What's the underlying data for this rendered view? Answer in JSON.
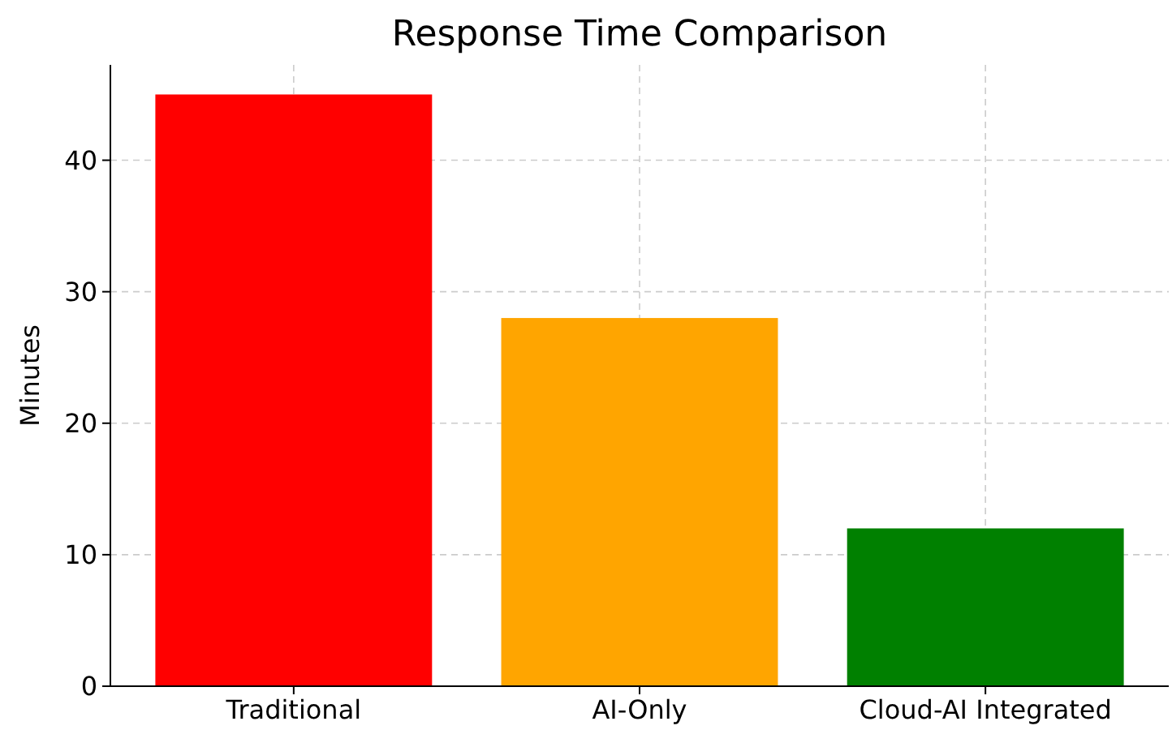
{
  "chart_data": {
    "type": "bar",
    "title": "Response Time Comparison",
    "ylabel": "Minutes",
    "categories": [
      "Traditional",
      "AI-Only",
      "Cloud-AI Integrated"
    ],
    "values": [
      45,
      28,
      12
    ],
    "colors": [
      "#ff0000",
      "#ffa500",
      "#008000"
    ],
    "ylim": [
      0,
      47.25
    ],
    "yticks": [
      0,
      10,
      20,
      30,
      40
    ],
    "grid": true
  }
}
